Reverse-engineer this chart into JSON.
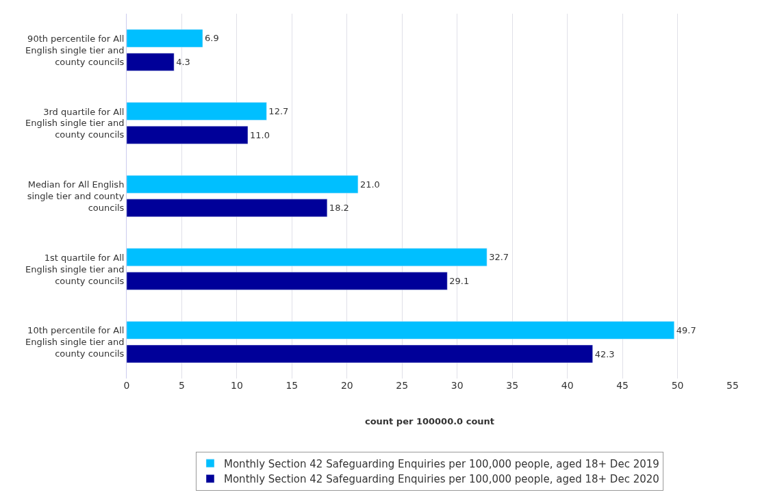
{
  "chart_data": {
    "type": "bar",
    "orientation": "horizontal",
    "xlabel": "count per 100000.0 count",
    "categories": [
      "90th percentile for All English single tier and county councils",
      "3rd quartile for All English single tier and county councils",
      "Median for All English single tier and county councils",
      "1st quartile for All English single tier and county councils",
      "10th percentile for All English single tier and county councils"
    ],
    "series": [
      {
        "name": "Monthly Section 42 Safeguarding Enquiries per 100,000 people, aged 18+ Dec 2019",
        "color": "#00bfff",
        "values": [
          6.9,
          12.7,
          21.0,
          32.7,
          49.7
        ],
        "value_labels": [
          "6.9",
          "12.7",
          "21.0",
          "32.7",
          "49.7"
        ]
      },
      {
        "name": "Monthly Section 42 Safeguarding Enquiries per 100,000 people, aged 18+ Dec 2020",
        "color": "#000099",
        "values": [
          4.3,
          11.0,
          18.2,
          29.1,
          42.3
        ],
        "value_labels": [
          "4.3",
          "11.0",
          "18.2",
          "29.1",
          "42.3"
        ]
      }
    ],
    "xlim": [
      0,
      55
    ],
    "xticks": [
      0,
      5,
      10,
      15,
      20,
      25,
      30,
      35,
      40,
      45,
      50,
      55
    ],
    "grid": "x",
    "legend": "bottom"
  }
}
